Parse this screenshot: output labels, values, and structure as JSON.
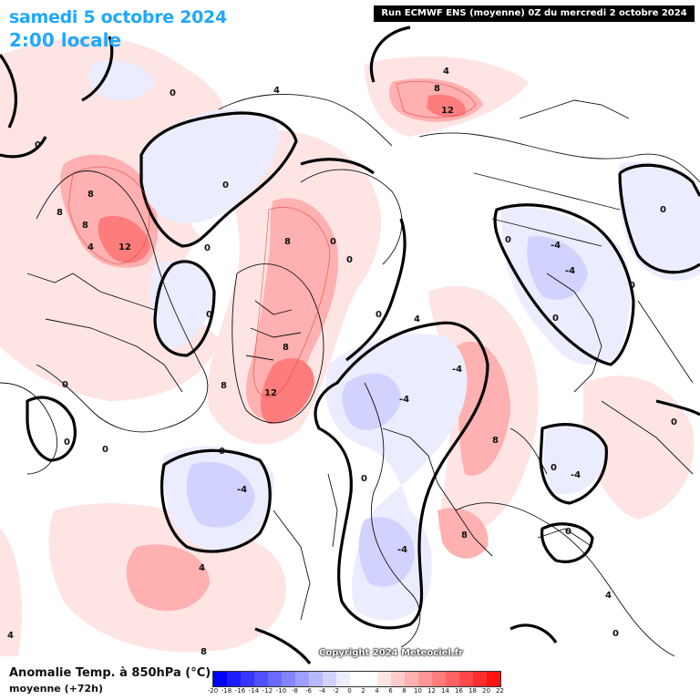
{
  "header": {
    "date": "samedi 5 octobre 2024",
    "time": "2:00 locale",
    "run_info": "Run ECMWF ENS (moyenne) 0Z du mercredi 2 octobre 2024"
  },
  "footer": {
    "variable": "Anomalie Temp. à 850hPa (°C)",
    "subtitle": "moyenne   (+72h)",
    "copyright": "Copyright 2024 Meteociel.fr"
  },
  "legend": {
    "ticks": [
      "-20",
      "-18",
      "-16",
      "-14",
      "-12",
      "-10",
      "-8",
      "-6",
      "-4",
      "-2",
      "0",
      "2",
      "4",
      "6",
      "8",
      "10",
      "12",
      "14",
      "16",
      "18",
      "20",
      "22"
    ],
    "colors": [
      "#0000ff",
      "#1c1cff",
      "#3636ff",
      "#5050ff",
      "#6a6aff",
      "#8484ff",
      "#9e9eff",
      "#b8b8ff",
      "#d2d2ff",
      "#ececff",
      "#ffffff",
      "#ffffff",
      "#ffe4e4",
      "#ffcaca",
      "#ffb0b0",
      "#ff9696",
      "#ff7c7c",
      "#ff6262",
      "#ff4848",
      "#ff2e2e",
      "#ff1414"
    ]
  },
  "map": {
    "contour_labels": [
      "0",
      "4",
      "8",
      "12",
      "-4"
    ]
  }
}
